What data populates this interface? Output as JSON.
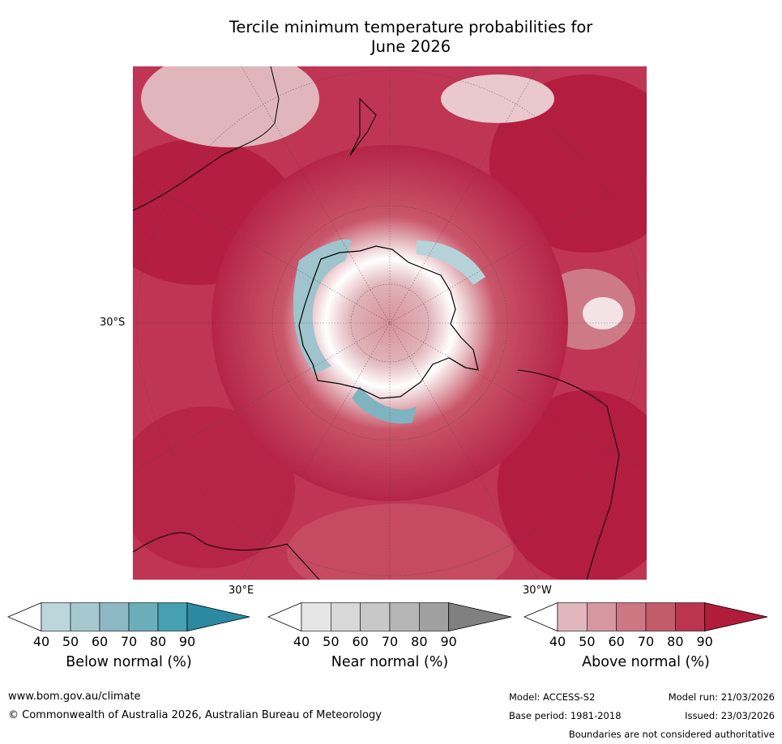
{
  "title_line1": "Tercile minimum temperature probabilities for",
  "title_line2": "June 2026",
  "map": {
    "label_left": "30°S",
    "label_bottom_left": "30°E",
    "label_bottom_right": "30°W"
  },
  "colorbars": [
    {
      "label": "Below normal (%)",
      "ticks": [
        "40",
        "50",
        "60",
        "70",
        "80",
        "90"
      ],
      "colors": [
        "#ffffff",
        "#bcd6dc",
        "#a6c8cf",
        "#8db8c4",
        "#6aaeba",
        "#45a0b2",
        "#2b8aa2"
      ]
    },
    {
      "label": "Near normal (%)",
      "ticks": [
        "40",
        "50",
        "60",
        "70",
        "80",
        "90"
      ],
      "colors": [
        "#ffffff",
        "#e6e6e6",
        "#d8d8d8",
        "#c8c8c8",
        "#b6b6b6",
        "#a0a0a0",
        "#808080"
      ]
    },
    {
      "label": "Above normal (%)",
      "ticks": [
        "40",
        "50",
        "60",
        "70",
        "80",
        "90"
      ],
      "colors": [
        "#ffffff",
        "#e1b6bd",
        "#d6979f",
        "#cc7782",
        "#c35b69",
        "#bb3550",
        "#b01c3a"
      ]
    }
  ],
  "footer": {
    "website": "www.bom.gov.au/climate",
    "copyright": "© Commonwealth of Australia 2026, Australian Bureau of Meteorology",
    "model": "Model: ACCESS-S2",
    "base_period": "Base period: 1981-2018",
    "model_run": "Model run: 21/03/2026",
    "issued": "Issued: 23/03/2026",
    "disclaimer": "Boundaries are not considered authoritative"
  }
}
